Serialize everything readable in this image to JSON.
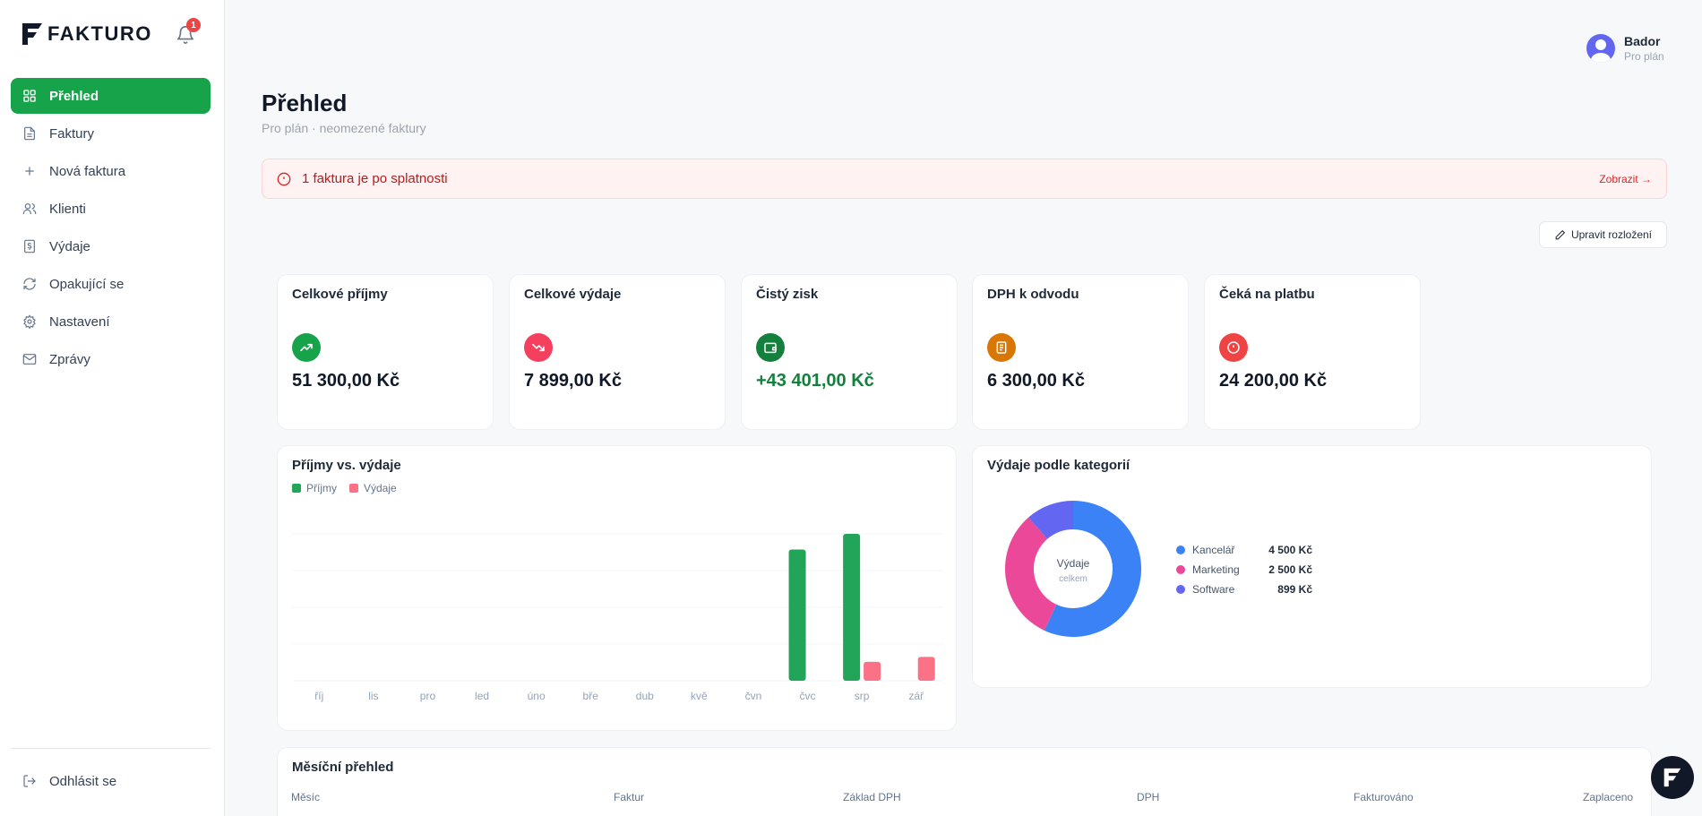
{
  "app": {
    "brand": "FAKTURO",
    "notifications_count": "1"
  },
  "sidebar": {
    "items": [
      {
        "label": "Přehled",
        "icon": "grid-icon",
        "active": true
      },
      {
        "label": "Faktury",
        "icon": "document-icon"
      },
      {
        "label": "Nová faktura",
        "icon": "plus-icon"
      },
      {
        "label": "Klienti",
        "icon": "users-icon"
      },
      {
        "label": "Výdaje",
        "icon": "receipt-icon"
      },
      {
        "label": "Opakující se",
        "icon": "refresh-icon"
      },
      {
        "label": "Nastavení",
        "icon": "gear-icon"
      },
      {
        "label": "Zprávy",
        "icon": "mail-icon"
      }
    ],
    "logout_label": "Odhlásit se"
  },
  "user": {
    "name": "Bador",
    "plan": "Pro plán"
  },
  "page": {
    "title": "Přehled",
    "subtitle": "Pro plán · neomezené faktury"
  },
  "alert": {
    "text": "1 faktura je po splatnosti",
    "link": "Zobrazit →"
  },
  "toolbar": {
    "edit_layout_label": "Upravit rozložení"
  },
  "kpis": [
    {
      "label": "Celkové příjmy",
      "value": "51 300,00 Kč",
      "icon": "trend-up-icon",
      "color": "#16a34a"
    },
    {
      "label": "Celkové výdaje",
      "value": "7 899,00 Kč",
      "icon": "trend-down-icon",
      "color": "#f43f5e"
    },
    {
      "label": "Čistý zisk",
      "value": "+43 401,00 Kč",
      "icon": "wallet-icon",
      "color": "#15803d",
      "value_color": "#15803d"
    },
    {
      "label": "DPH k odvodu",
      "value": "6 300,00 Kč",
      "icon": "tax-document-icon",
      "color": "#d97706"
    },
    {
      "label": "Čeká na platbu",
      "value": "24 200,00 Kč",
      "icon": "alert-circle-icon",
      "color": "#ef4444"
    }
  ],
  "income_chart": {
    "title": "Příjmy vs. výdaje",
    "legend": [
      {
        "name": "Příjmy",
        "color": "#22a559"
      },
      {
        "name": "Výdaje",
        "color": "#fb7185"
      }
    ]
  },
  "category_chart": {
    "title": "Výdaje podle kategorií",
    "center_label": "Výdaje",
    "center_sub": "celkem",
    "items": [
      {
        "name": "Kancelář",
        "value": "4 500 Kč",
        "color": "#3b82f6"
      },
      {
        "name": "Marketing",
        "value": "2 500 Kč",
        "color": "#ec4899"
      },
      {
        "name": "Software",
        "value": "899 Kč",
        "color": "#6366f1"
      }
    ]
  },
  "monthly": {
    "title": "Měsíční přehled",
    "columns": [
      "Měsíc",
      "Faktur",
      "Základ DPH",
      "DPH",
      "Fakturováno",
      "Zaplaceno"
    ]
  },
  "chart_data": [
    {
      "type": "bar",
      "title": "Příjmy vs. výdaje",
      "categories": [
        "říj",
        "lis",
        "pro",
        "led",
        "úno",
        "bře",
        "dub",
        "kvě",
        "čvn",
        "čvc",
        "srp",
        "zář"
      ],
      "series": [
        {
          "name": "Příjmy",
          "color": "#22a559",
          "values": [
            0,
            0,
            0,
            0,
            0,
            0,
            0,
            0,
            0,
            24200,
            27100,
            0
          ]
        },
        {
          "name": "Výdaje",
          "color": "#fb7185",
          "values": [
            0,
            0,
            0,
            0,
            0,
            0,
            0,
            0,
            0,
            0,
            3500,
            4399
          ]
        }
      ],
      "ylim": [
        0,
        27100
      ],
      "grid": true
    },
    {
      "type": "pie",
      "title": "Výdaje podle kategorií",
      "categories": [
        "Kancelář",
        "Marketing",
        "Software"
      ],
      "values": [
        4500,
        2500,
        899
      ],
      "colors": [
        "#3b82f6",
        "#ec4899",
        "#6366f1"
      ]
    }
  ]
}
